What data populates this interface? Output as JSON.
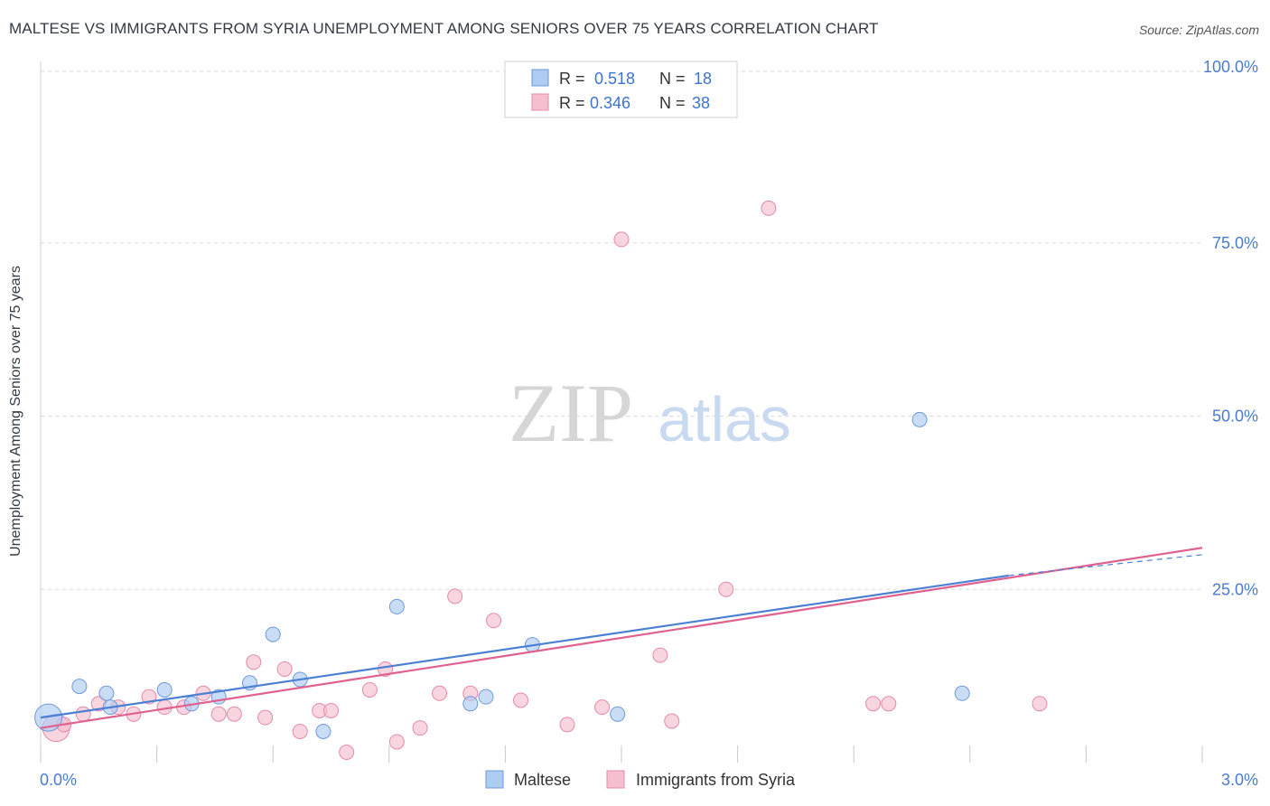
{
  "header": {
    "title": "MALTESE VS IMMIGRANTS FROM SYRIA UNEMPLOYMENT AMONG SENIORS OVER 75 YEARS CORRELATION CHART",
    "source": "Source: ZipAtlas.com"
  },
  "watermark": {
    "zip": "ZIP",
    "atlas": "atlas"
  },
  "colors": {
    "blue": "#4a7fd4",
    "blue_fill": "#aecbf2",
    "pink": "#e0608f",
    "pink_fill": "#f6bfd0",
    "tick_label": "#4a7bd0",
    "grid": "#d9d9d9"
  },
  "legend_top": {
    "rows": [
      {
        "r_label": "R =",
        "r_value": "0.518",
        "n_label": "N =",
        "n_value": "18"
      },
      {
        "r_label": "R =",
        "r_value": "0.346",
        "n_label": "N =",
        "n_value": "38"
      }
    ]
  },
  "legend_bottom": {
    "items": [
      "Maltese",
      "Immigrants from Syria"
    ]
  },
  "chart_data": {
    "type": "scatter",
    "title": "MALTESE VS IMMIGRANTS FROM SYRIA UNEMPLOYMENT AMONG SENIORS OVER 75 YEARS CORRELATION CHART",
    "xlabel": "",
    "ylabel": "Unemployment Among Seniors over 75 years",
    "xlim": [
      0,
      3.0
    ],
    "ylim": [
      0,
      100
    ],
    "x_tick_labels": [
      "0.0%",
      "3.0%"
    ],
    "y_ticks": [
      25,
      50,
      75,
      100
    ],
    "y_tick_labels": [
      "25.0%",
      "50.0%",
      "75.0%",
      "100.0%"
    ],
    "series": [
      {
        "name": "Maltese",
        "r": 0.518,
        "n": 18,
        "points": [
          {
            "x": 0.02,
            "y": 6.5,
            "big": true
          },
          {
            "x": 0.1,
            "y": 11.0
          },
          {
            "x": 0.17,
            "y": 10.0
          },
          {
            "x": 0.18,
            "y": 8.0
          },
          {
            "x": 0.32,
            "y": 10.5
          },
          {
            "x": 0.39,
            "y": 8.5
          },
          {
            "x": 0.46,
            "y": 9.5
          },
          {
            "x": 0.54,
            "y": 11.5
          },
          {
            "x": 0.6,
            "y": 18.5
          },
          {
            "x": 0.67,
            "y": 12.0
          },
          {
            "x": 0.73,
            "y": 4.5
          },
          {
            "x": 0.92,
            "y": 22.5
          },
          {
            "x": 1.11,
            "y": 8.5
          },
          {
            "x": 1.15,
            "y": 9.5
          },
          {
            "x": 1.27,
            "y": 17.0
          },
          {
            "x": 1.49,
            "y": 7.0
          },
          {
            "x": 2.27,
            "y": 49.5
          },
          {
            "x": 2.38,
            "y": 10.0
          }
        ],
        "trend": {
          "x0": 0.0,
          "y0": 6.5,
          "x1": 2.5,
          "y1": 27.0,
          "dash_to_x": 3.0,
          "dash_to_y": 30.0
        }
      },
      {
        "name": "Immigrants from Syria",
        "r": 0.346,
        "n": 38,
        "points": [
          {
            "x": 0.04,
            "y": 5.0,
            "big": true
          },
          {
            "x": 0.06,
            "y": 5.5
          },
          {
            "x": 0.11,
            "y": 7.0
          },
          {
            "x": 0.15,
            "y": 8.5
          },
          {
            "x": 0.2,
            "y": 8.0
          },
          {
            "x": 0.24,
            "y": 7.0
          },
          {
            "x": 0.28,
            "y": 9.5
          },
          {
            "x": 0.32,
            "y": 8.0
          },
          {
            "x": 0.37,
            "y": 8.0
          },
          {
            "x": 0.42,
            "y": 10.0
          },
          {
            "x": 0.46,
            "y": 7.0
          },
          {
            "x": 0.5,
            "y": 7.0
          },
          {
            "x": 0.55,
            "y": 14.5
          },
          {
            "x": 0.58,
            "y": 6.5
          },
          {
            "x": 0.63,
            "y": 13.5
          },
          {
            "x": 0.67,
            "y": 4.5
          },
          {
            "x": 0.72,
            "y": 7.5
          },
          {
            "x": 0.75,
            "y": 7.5
          },
          {
            "x": 0.79,
            "y": 1.5
          },
          {
            "x": 0.85,
            "y": 10.5
          },
          {
            "x": 0.89,
            "y": 13.5
          },
          {
            "x": 0.92,
            "y": 3.0
          },
          {
            "x": 0.98,
            "y": 5.0
          },
          {
            "x": 1.03,
            "y": 10.0
          },
          {
            "x": 1.07,
            "y": 24.0
          },
          {
            "x": 1.11,
            "y": 10.0
          },
          {
            "x": 1.17,
            "y": 20.5
          },
          {
            "x": 1.24,
            "y": 9.0
          },
          {
            "x": 1.36,
            "y": 5.5
          },
          {
            "x": 1.45,
            "y": 8.0
          },
          {
            "x": 1.5,
            "y": 75.5
          },
          {
            "x": 1.6,
            "y": 15.5
          },
          {
            "x": 1.63,
            "y": 6.0
          },
          {
            "x": 1.77,
            "y": 25.0
          },
          {
            "x": 1.88,
            "y": 80.0
          },
          {
            "x": 2.15,
            "y": 8.5
          },
          {
            "x": 2.19,
            "y": 8.5
          },
          {
            "x": 2.58,
            "y": 8.5
          }
        ],
        "trend": {
          "x0": 0.0,
          "y0": 5.0,
          "x1": 3.0,
          "y1": 31.0
        }
      }
    ]
  }
}
